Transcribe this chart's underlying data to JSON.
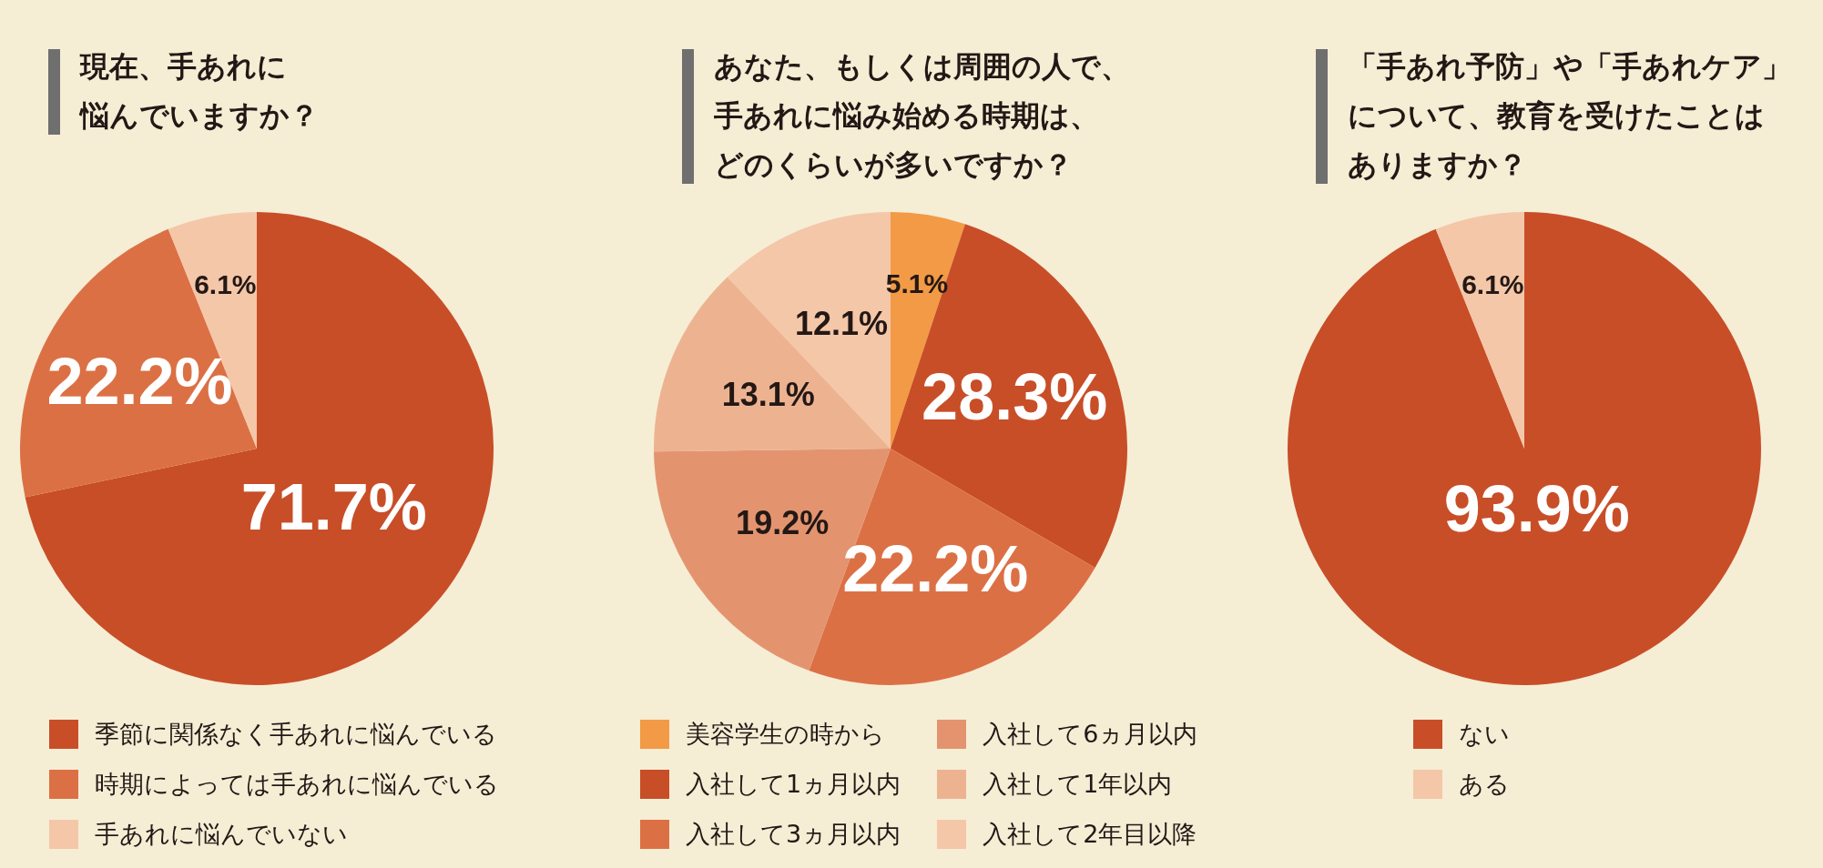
{
  "chart_data": [
    {
      "type": "pie",
      "title": "現在、手あれに悩んでいますか？",
      "categories": [
        "季節に関係なく手あれに悩んでいる",
        "時期によっては手あれに悩んでいる",
        "手あれに悩んでいない"
      ],
      "values": [
        71.7,
        22.2,
        6.1
      ],
      "colors": [
        "#c84e28",
        "#dc7045",
        "#f4c7a8"
      ],
      "value_labels": [
        "71.7%",
        "22.2%",
        "6.1%"
      ],
      "legend": "bottom"
    },
    {
      "type": "pie",
      "title": "あなた、もしくは周囲の人で、手あれに悩み始める時期は、どのくらいが多いですか？",
      "categories": [
        "美容学生の時から",
        "入社して1ヵ月以内",
        "入社して3ヵ月以内",
        "入社して6ヵ月以内",
        "入社して1年以内",
        "入社して2年目以降"
      ],
      "values": [
        5.1,
        28.3,
        22.2,
        19.2,
        13.1,
        12.1
      ],
      "colors": [
        "#f29a45",
        "#c84e28",
        "#dc7045",
        "#e3946f",
        "#edb391",
        "#f4c7a8"
      ],
      "value_labels": [
        "5.1%",
        "28.3%",
        "22.2%",
        "19.2%",
        "13.1%",
        "12.1%"
      ],
      "legend": "bottom"
    },
    {
      "type": "pie",
      "title": "「手あれ予防」や「手あれケア」について、教育を受けたことはありますか？",
      "categories": [
        "ない",
        "ある"
      ],
      "values": [
        93.9,
        6.1
      ],
      "colors": [
        "#c84e28",
        "#f4c7a8"
      ],
      "value_labels": [
        "93.9%",
        "6.1%"
      ],
      "legend": "bottom"
    }
  ]
}
